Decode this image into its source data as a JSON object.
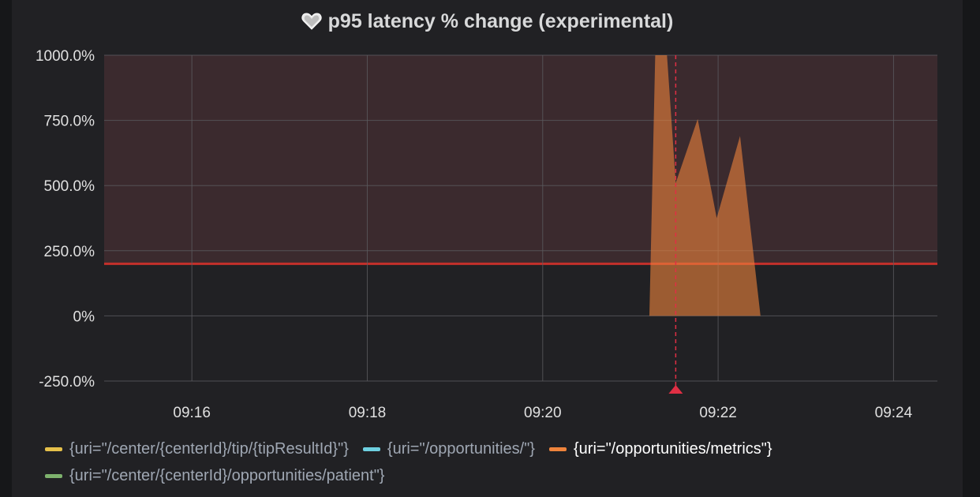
{
  "panel": {
    "title": "p95 latency % change (experimental)",
    "icon": "heart-icon"
  },
  "chart_data": {
    "type": "area",
    "title": "p95 latency % change (experimental)",
    "x_tick_labels": [
      "09:16",
      "09:18",
      "09:20",
      "09:22",
      "09:24"
    ],
    "y_tick_labels": [
      "1000.0%",
      "750.0%",
      "500.0%",
      "250.0%",
      "0%",
      "-250.0%"
    ],
    "y_ticks": [
      1000,
      750,
      500,
      250,
      0,
      -250
    ],
    "ylim": [
      -250,
      1000
    ],
    "xlim": [
      "09:15:00",
      "09:24:30"
    ],
    "grid": true,
    "threshold": {
      "value": 200,
      "color": "#c4302b",
      "fill": "#3b2a2e"
    },
    "annotation": {
      "x": "09:21:31",
      "color": "#e02f44"
    },
    "series": [
      {
        "name": "{uri=\"/opportunities/metrics\"}",
        "color": "#ef843c",
        "x": [
          "09:21:13",
          "09:21:17",
          "09:21:25",
          "09:21:31",
          "09:21:46",
          "09:21:59",
          "09:22:15",
          "09:22:29"
        ],
        "values": [
          0,
          1000,
          1000,
          510,
          755,
          375,
          690,
          0
        ]
      }
    ],
    "legend_placement": "bottom-left"
  },
  "legend": {
    "items": [
      {
        "label": "{uri=\"/center/{centerId}/tip/{tipResultId}\"}",
        "color": "#e5c04a",
        "active": false
      },
      {
        "label": "{uri=\"/opportunities/\"}",
        "color": "#6ed0e0",
        "active": false
      },
      {
        "label": "{uri=\"/opportunities/metrics\"}",
        "color": "#ef843c",
        "active": true
      },
      {
        "label": "{uri=\"/center/{centerId}/opportunities/patient\"}",
        "color": "#7eb26d",
        "active": false
      }
    ]
  }
}
